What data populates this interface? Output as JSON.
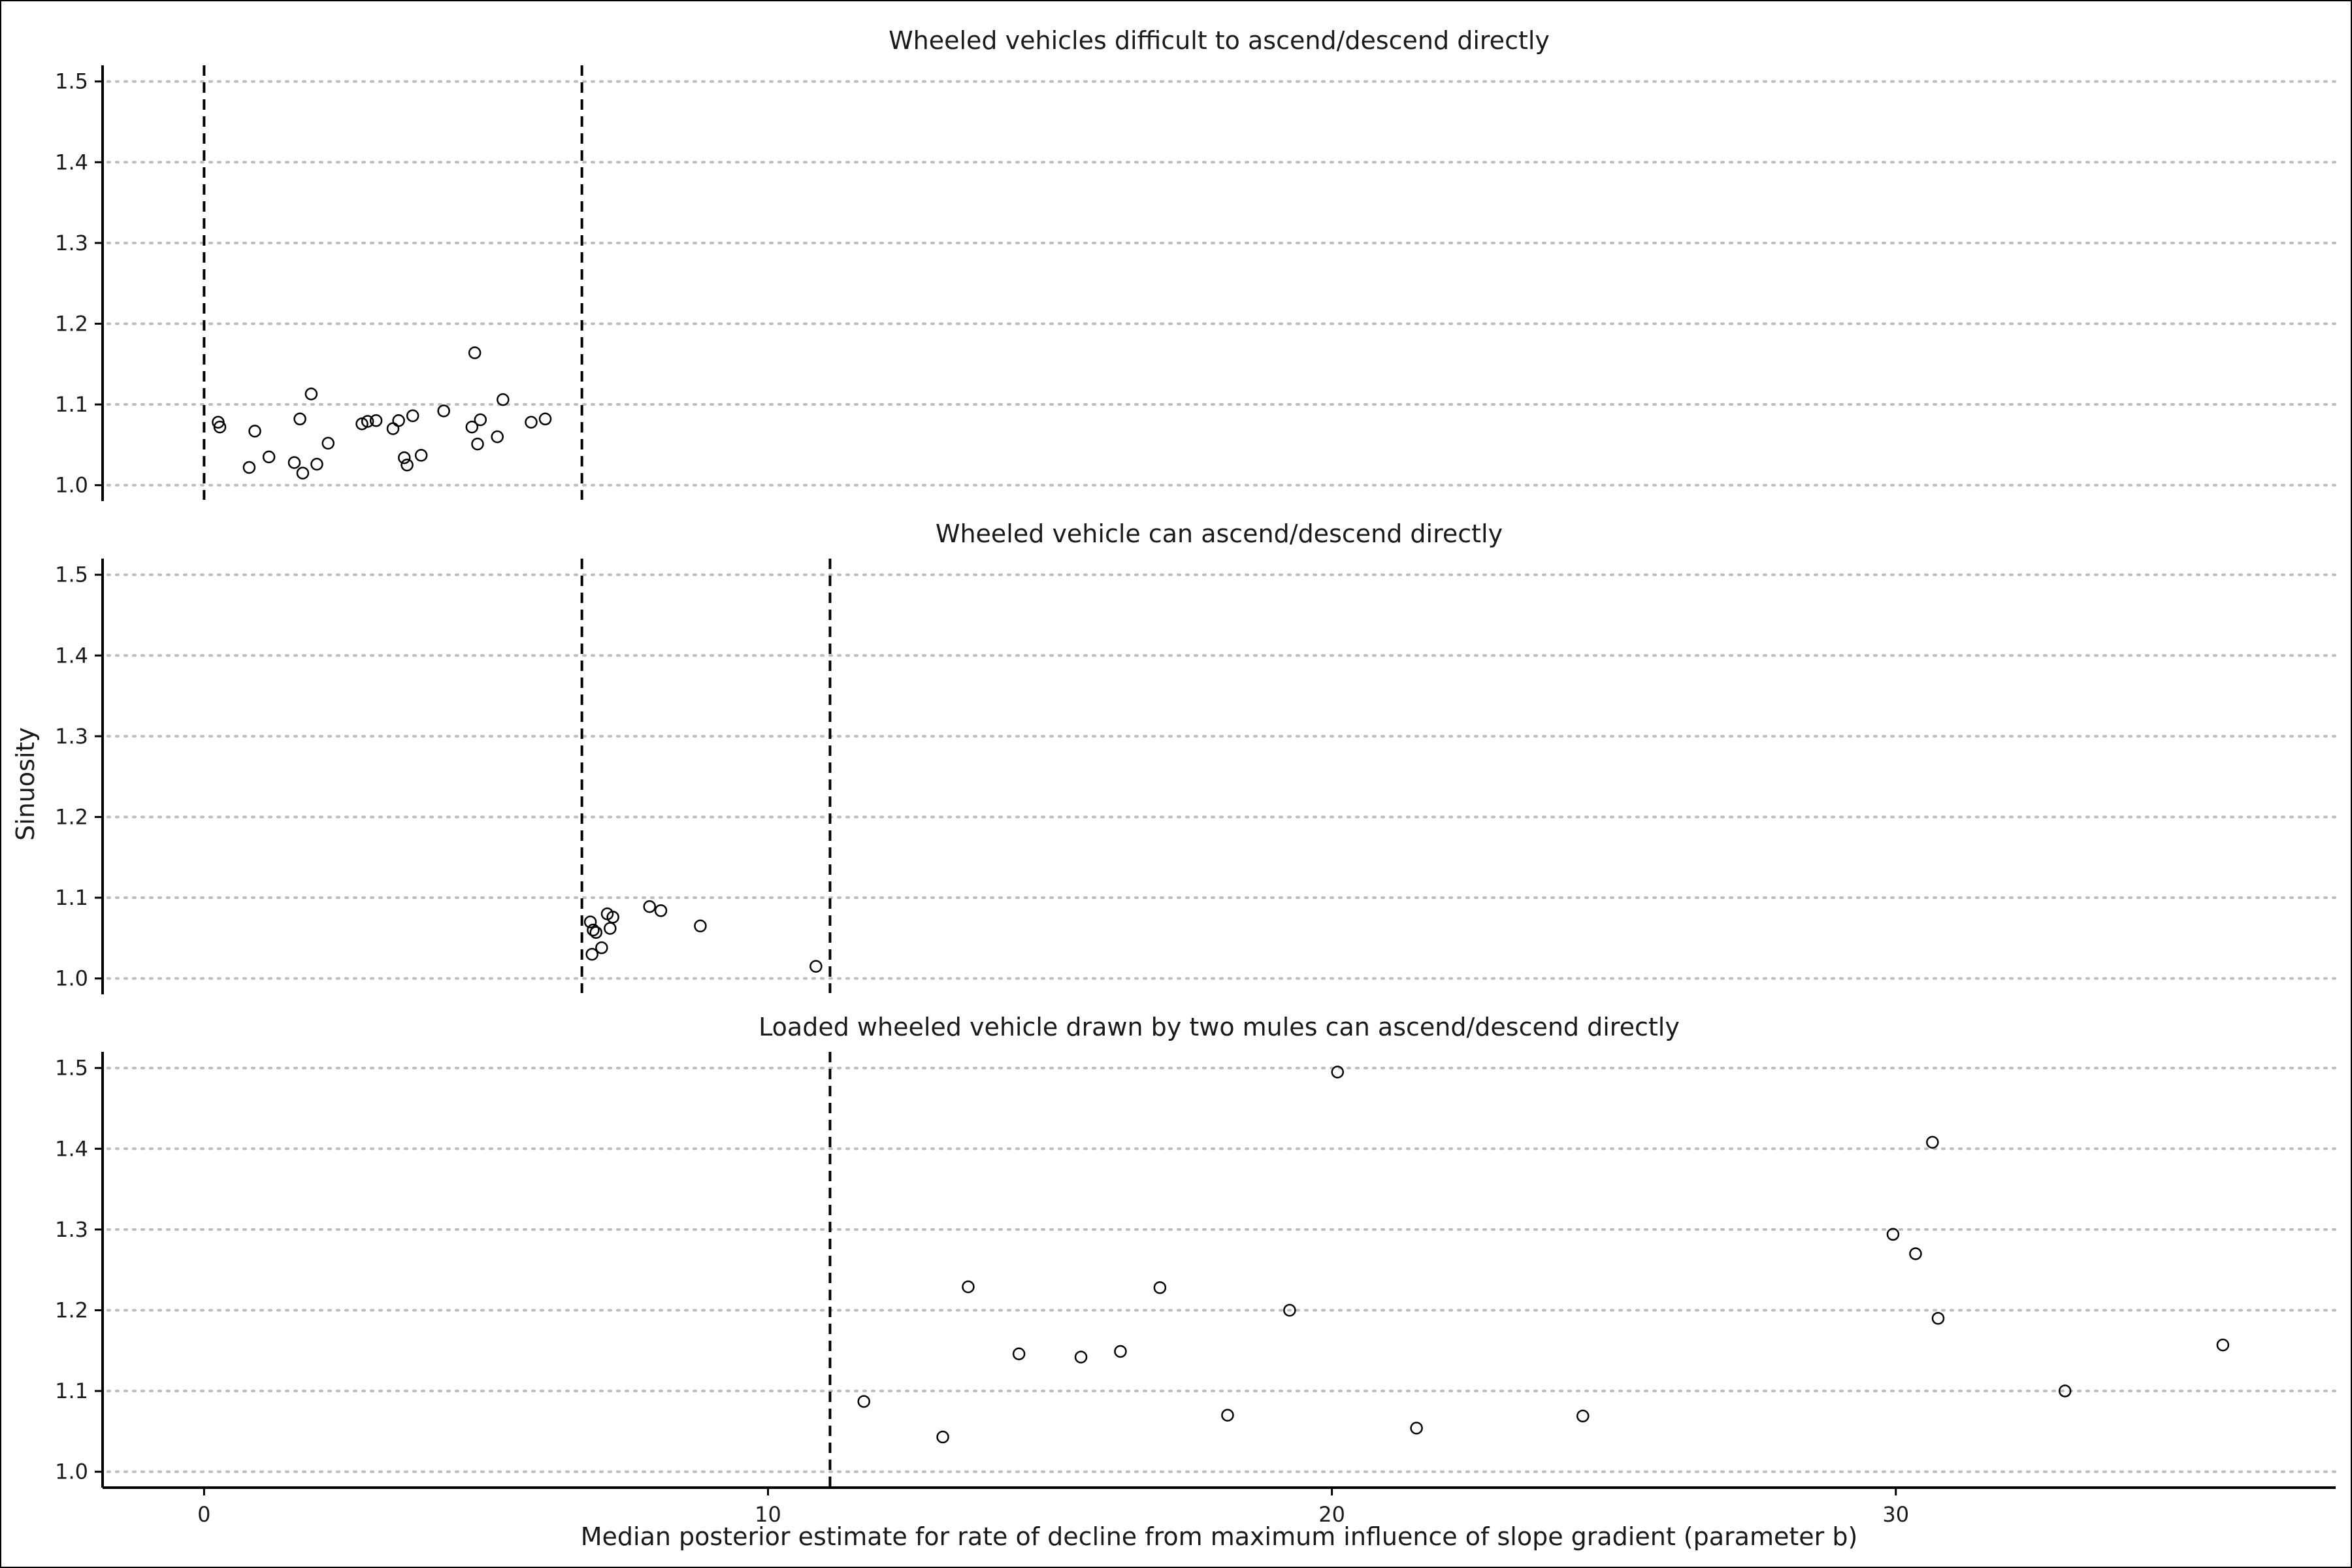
{
  "chart_data": {
    "type": "scatter",
    "xlabel": "Median posterior estimate for rate of decline from maximum influence of slope gradient (parameter b)",
    "ylabel": "Sinuosity",
    "xlim": [
      -1.8,
      37.8
    ],
    "x_ticks": [
      0,
      10,
      20,
      30
    ],
    "ylim": [
      0.99,
      1.52
    ],
    "y_ticks": [
      1.0,
      1.1,
      1.2,
      1.3,
      1.4,
      1.5
    ],
    "grid": "horizontal dotted",
    "shared_x_axis": true,
    "facets": [
      {
        "title": "Wheeled vehicles difficult to ascend/descend directly",
        "vlines": [
          0,
          6.7
        ],
        "points": [
          {
            "x": 0.25,
            "y": 1.078
          },
          {
            "x": 0.28,
            "y": 1.072
          },
          {
            "x": 0.8,
            "y": 1.022
          },
          {
            "x": 0.9,
            "y": 1.067
          },
          {
            "x": 1.15,
            "y": 1.035
          },
          {
            "x": 1.6,
            "y": 1.028
          },
          {
            "x": 1.7,
            "y": 1.082
          },
          {
            "x": 1.75,
            "y": 1.015
          },
          {
            "x": 1.9,
            "y": 1.113
          },
          {
            "x": 2.0,
            "y": 1.026
          },
          {
            "x": 2.2,
            "y": 1.052
          },
          {
            "x": 2.8,
            "y": 1.076
          },
          {
            "x": 2.9,
            "y": 1.079
          },
          {
            "x": 3.05,
            "y": 1.08
          },
          {
            "x": 3.35,
            "y": 1.07
          },
          {
            "x": 3.45,
            "y": 1.08
          },
          {
            "x": 3.55,
            "y": 1.034
          },
          {
            "x": 3.6,
            "y": 1.025
          },
          {
            "x": 3.7,
            "y": 1.086
          },
          {
            "x": 3.85,
            "y": 1.037
          },
          {
            "x": 4.25,
            "y": 1.092
          },
          {
            "x": 4.75,
            "y": 1.072
          },
          {
            "x": 4.8,
            "y": 1.164
          },
          {
            "x": 4.85,
            "y": 1.051
          },
          {
            "x": 4.9,
            "y": 1.081
          },
          {
            "x": 5.2,
            "y": 1.06
          },
          {
            "x": 5.3,
            "y": 1.106
          },
          {
            "x": 5.8,
            "y": 1.078
          },
          {
            "x": 6.05,
            "y": 1.082
          }
        ]
      },
      {
        "title": "Wheeled vehicle can ascend/descend directly",
        "vlines": [
          6.7,
          11.1
        ],
        "points": [
          {
            "x": 6.85,
            "y": 1.07
          },
          {
            "x": 6.9,
            "y": 1.06
          },
          {
            "x": 6.95,
            "y": 1.057
          },
          {
            "x": 6.88,
            "y": 1.03
          },
          {
            "x": 7.05,
            "y": 1.038
          },
          {
            "x": 7.15,
            "y": 1.08
          },
          {
            "x": 7.2,
            "y": 1.062
          },
          {
            "x": 7.25,
            "y": 1.076
          },
          {
            "x": 7.9,
            "y": 1.089
          },
          {
            "x": 8.1,
            "y": 1.084
          },
          {
            "x": 8.8,
            "y": 1.065
          },
          {
            "x": 10.85,
            "y": 1.015
          }
        ]
      },
      {
        "title": "Loaded wheeled vehicle drawn by two mules can ascend/descend directly",
        "vlines": [
          11.1
        ],
        "points": [
          {
            "x": 11.7,
            "y": 1.087
          },
          {
            "x": 13.1,
            "y": 1.043
          },
          {
            "x": 13.55,
            "y": 1.229
          },
          {
            "x": 14.45,
            "y": 1.146
          },
          {
            "x": 15.55,
            "y": 1.142
          },
          {
            "x": 16.25,
            "y": 1.149
          },
          {
            "x": 16.95,
            "y": 1.228
          },
          {
            "x": 18.15,
            "y": 1.07
          },
          {
            "x": 19.25,
            "y": 1.2
          },
          {
            "x": 20.1,
            "y": 1.495
          },
          {
            "x": 21.5,
            "y": 1.054
          },
          {
            "x": 24.45,
            "y": 1.069
          },
          {
            "x": 29.95,
            "y": 1.294
          },
          {
            "x": 30.35,
            "y": 1.27
          },
          {
            "x": 30.65,
            "y": 1.408
          },
          {
            "x": 30.75,
            "y": 1.19
          },
          {
            "x": 33.0,
            "y": 1.1
          },
          {
            "x": 35.8,
            "y": 1.157
          }
        ]
      }
    ]
  }
}
